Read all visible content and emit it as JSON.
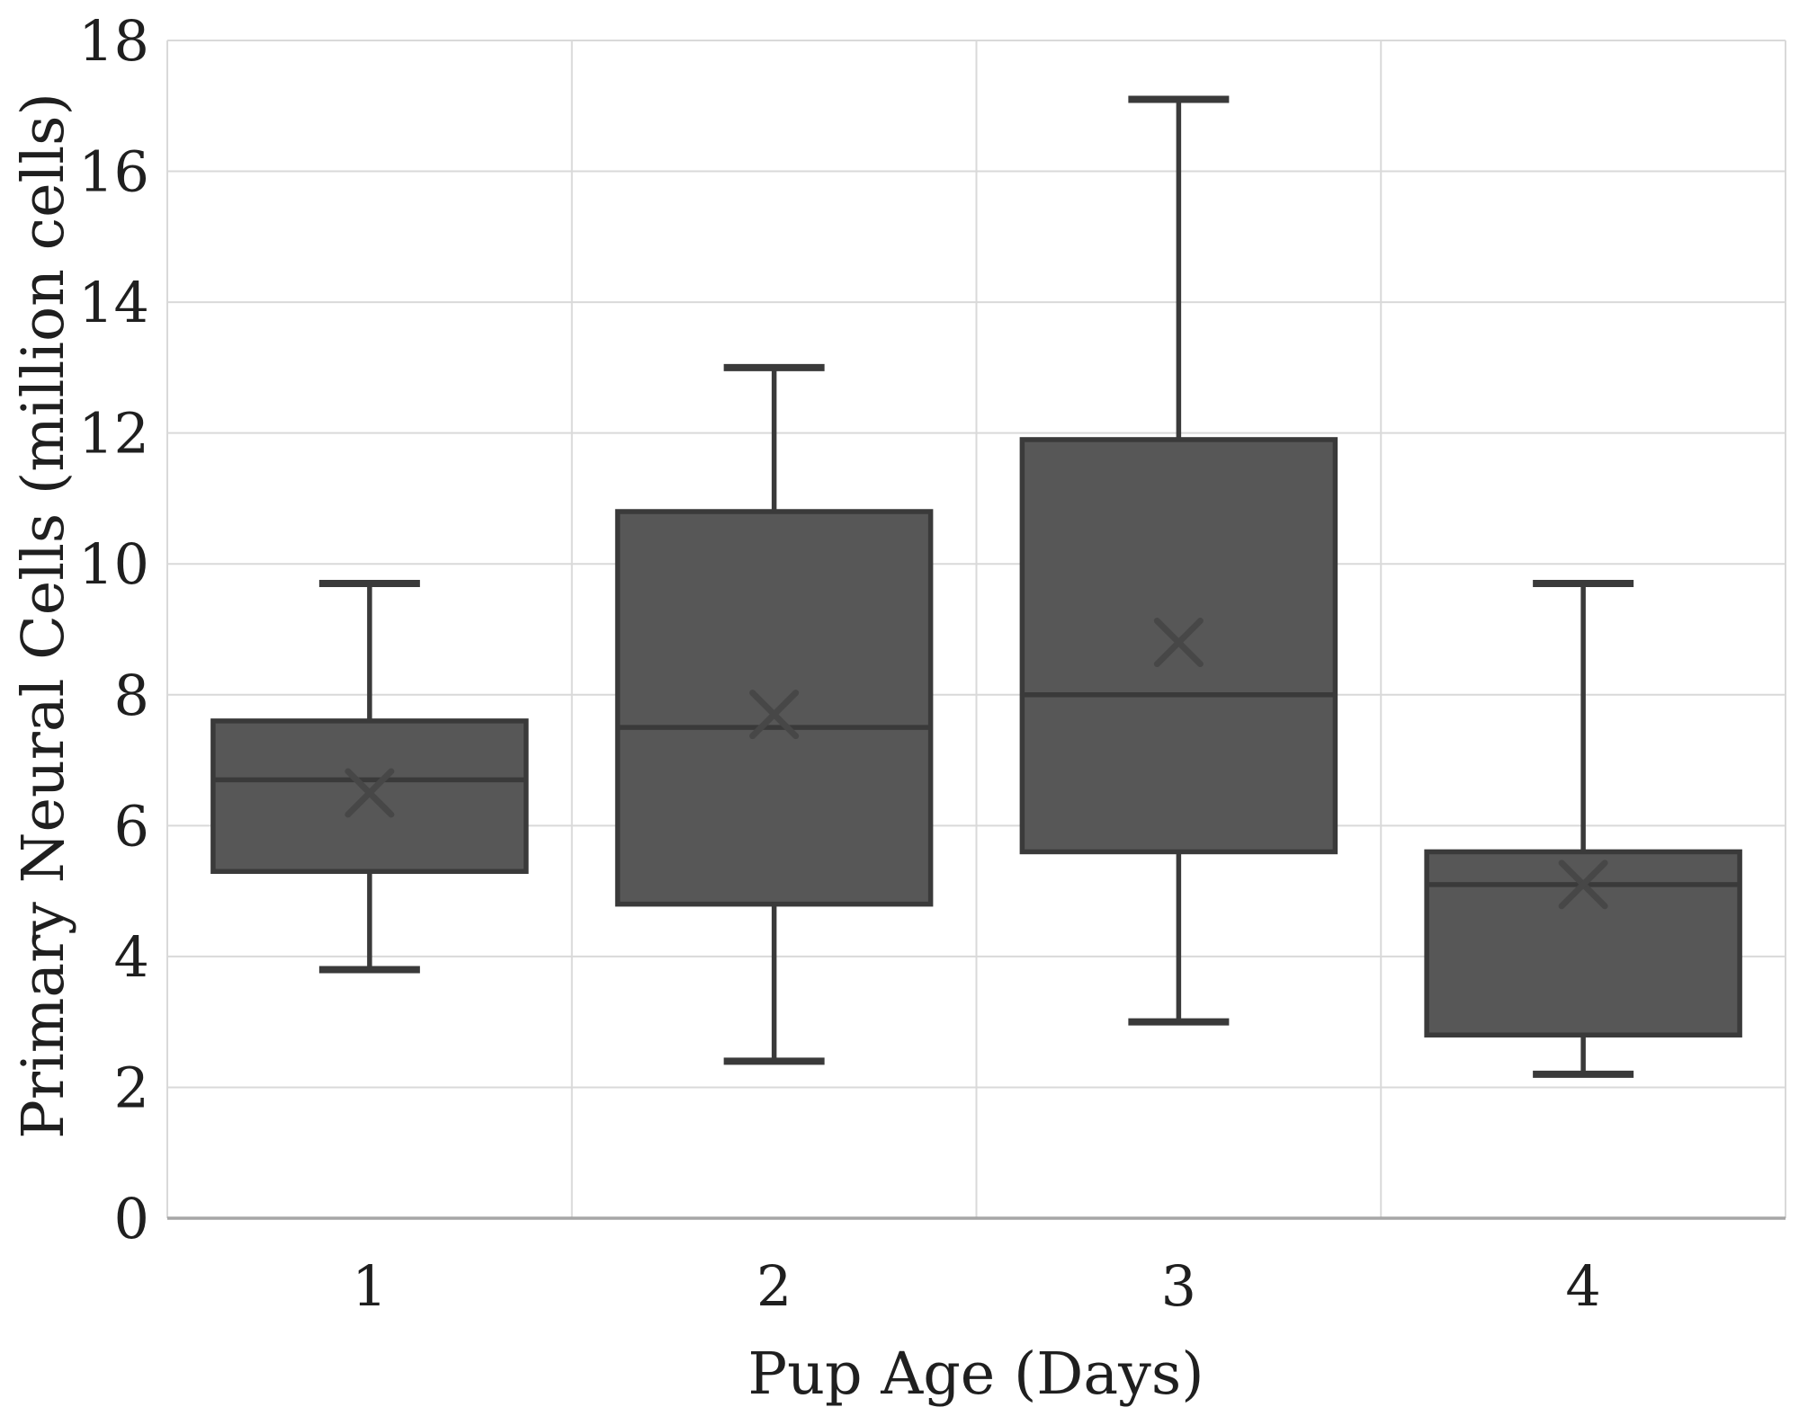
{
  "chart_data": {
    "type": "boxplot",
    "title": "",
    "xlabel": "Pup Age (Days)",
    "ylabel": "Primary Neural Cells (million cells)",
    "categories": [
      "1",
      "2",
      "3",
      "4"
    ],
    "ylim": [
      0,
      18
    ],
    "yticks": [
      0,
      2,
      4,
      6,
      8,
      10,
      12,
      14,
      16,
      18
    ],
    "grid": true,
    "legend": "none",
    "mean_marker": "x",
    "series": [
      {
        "category": "1",
        "whisker_low": 3.8,
        "q1": 5.3,
        "median": 6.7,
        "mean": 6.5,
        "q3": 7.6,
        "whisker_high": 9.7
      },
      {
        "category": "2",
        "whisker_low": 2.4,
        "q1": 4.8,
        "median": 7.5,
        "mean": 7.7,
        "q3": 10.8,
        "whisker_high": 13.0
      },
      {
        "category": "3",
        "whisker_low": 3.0,
        "q1": 5.6,
        "median": 8.0,
        "mean": 8.8,
        "q3": 11.9,
        "whisker_high": 17.1
      },
      {
        "category": "4",
        "whisker_low": 2.2,
        "q1": 2.8,
        "median": 5.1,
        "mean": 5.1,
        "q3": 5.6,
        "whisker_high": 9.7
      }
    ],
    "colors": {
      "box_fill": "#575757",
      "box_border": "#3a3a3a",
      "median_line": "#3a3a3a",
      "whisker": "#3a3a3a",
      "mean_marker": "#474747",
      "gridline": "#d9d9d9",
      "axis_line": "#a6a6a6",
      "text": "#1f1f1f",
      "background": "#ffffff"
    }
  }
}
